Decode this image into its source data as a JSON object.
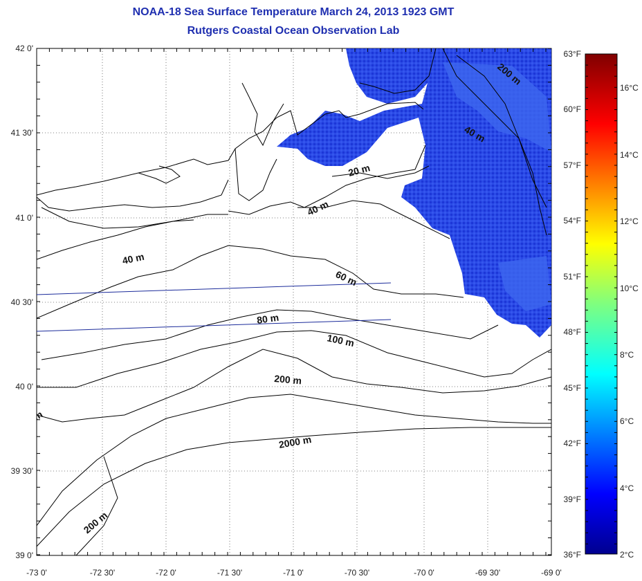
{
  "title": "NOAA-18 Sea Surface Temperature March 24, 2013 1923 GMT",
  "subtitle": "Rutgers Coastal Ocean Observation Lab",
  "lat_ticks": [
    "42 0'",
    "41 30'",
    "41 0'",
    "40 30'",
    "40 0'",
    "39 30'",
    "39 0'"
  ],
  "lon_ticks": [
    "-73 0'",
    "-72 30'",
    "-72 0'",
    "-71 30'",
    "-71 0'",
    "-70 30'",
    "-70 0'",
    "-69 30'",
    "-69 0'"
  ],
  "fahrenheit_ticks": [
    "63°F",
    "60°F",
    "57°F",
    "54°F",
    "51°F",
    "48°F",
    "45°F",
    "42°F",
    "39°F",
    "36°F"
  ],
  "celsius_ticks": [
    "16°C",
    "14°C",
    "12°C",
    "10°C",
    "8°C",
    "6°C",
    "4°C",
    "2°C"
  ],
  "contour_labels": {
    "c20": "20 m",
    "c40a": "40 m",
    "c40b": "40 m",
    "c40c": "40 m",
    "c60": "60 m",
    "c80": "80 m",
    "c100": "100 m",
    "c200a": "200 m",
    "c200b": "200 m",
    "c200c": "200 m",
    "c2000": "2000 m",
    "cm": "m"
  },
  "colors": {
    "title": "#1f2fb0",
    "land_outline": "#000000",
    "transect": "#1a2a9a",
    "sst_cold": "#1f3fe8"
  }
}
